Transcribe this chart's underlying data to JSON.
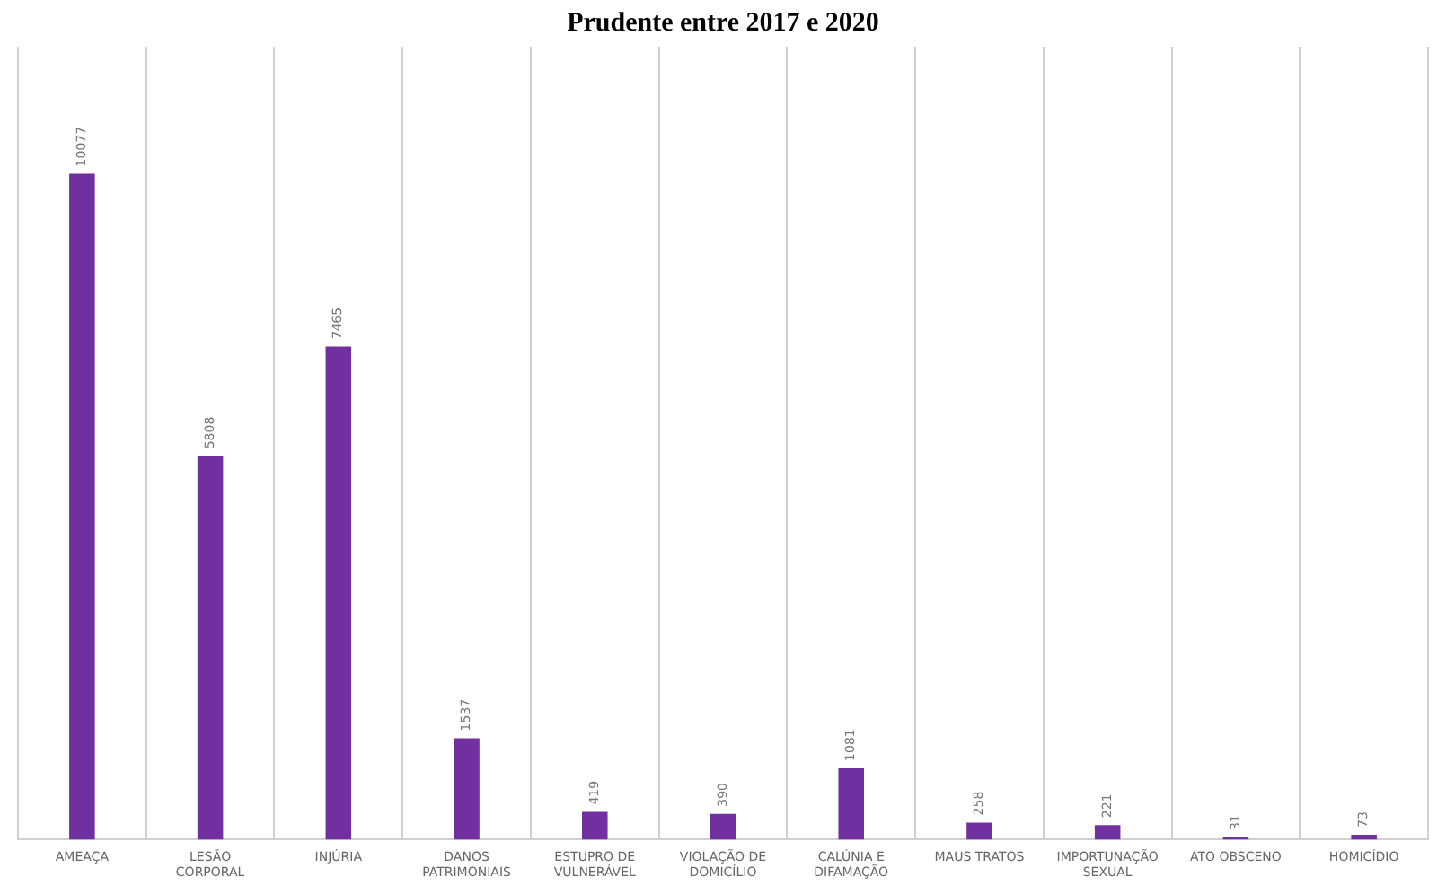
{
  "chart_data": {
    "type": "bar",
    "title": "Prudente entre 2017 e 2020",
    "categories": [
      "AMEAÇA",
      "LESÃO CORPORAL",
      "INJÚRIA",
      "DANOS PATRIMONIAIS",
      "ESTUPRO DE VULNERÁVEL",
      "VIOLAÇÃO DE DOMICÍLIO",
      "CALÚNIA E DIFAMAÇÃO",
      "MAUS TRATOS",
      "IMPORTUNAÇÃO SEXUAL",
      "ATO OBSCENO",
      "HOMICÍDIO"
    ],
    "values": [
      10077,
      5808,
      7465,
      1537,
      419,
      390,
      1081,
      258,
      221,
      31,
      73
    ],
    "color": "#7030a0",
    "data_labels": true,
    "grid": "x",
    "legend": false
  }
}
